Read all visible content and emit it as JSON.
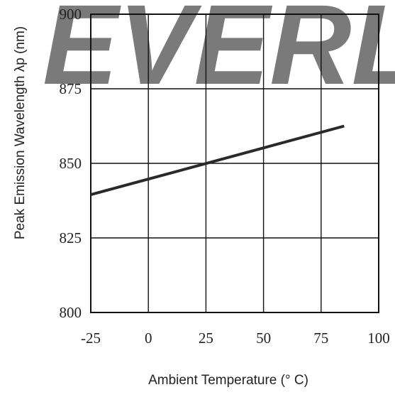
{
  "watermark": {
    "text": "EVERLIGHT",
    "color": "#c7e3f2"
  },
  "chart_data": {
    "type": "line",
    "title": "",
    "xlabel": "Ambient Temperature (° C)",
    "ylabel": "Peak Emission Wavelength λp (nm)",
    "xlim": [
      -25,
      100
    ],
    "ylim": [
      800,
      900
    ],
    "x_ticks": [
      -25,
      0,
      25,
      50,
      75,
      100
    ],
    "x_tick_labels": [
      "-25",
      "0",
      "25",
      "50",
      "75",
      "100"
    ],
    "y_ticks": [
      800,
      825,
      850,
      875,
      900
    ],
    "y_tick_labels": [
      "800",
      "825",
      "850",
      "875",
      "900"
    ],
    "grid": true,
    "legend": "none",
    "series": [
      {
        "x": [
          -25,
          85
        ],
        "y": [
          839.5,
          862.5
        ],
        "color": "#2a2a2a"
      }
    ]
  }
}
